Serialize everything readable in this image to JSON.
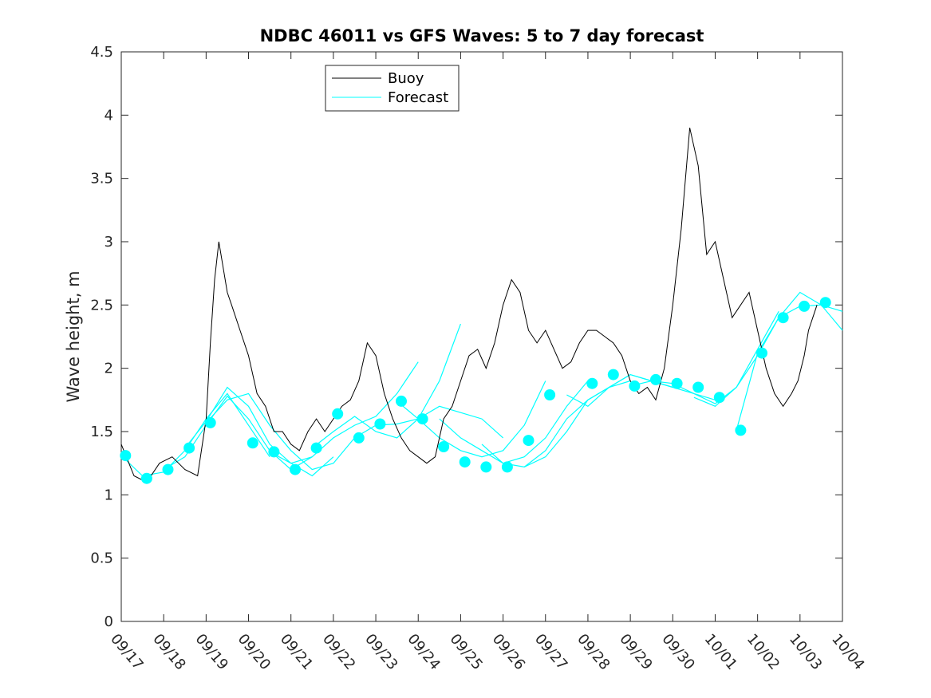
{
  "chart_data": {
    "type": "line",
    "title": "NDBC 46011 vs GFS Waves: 5 to 7 day forecast",
    "xlabel": "",
    "ylabel": "Wave height, m",
    "xlim": [
      0,
      17
    ],
    "ylim": [
      0,
      4.5
    ],
    "y_ticks": [
      0,
      0.5,
      1,
      1.5,
      2,
      2.5,
      3,
      3.5,
      4,
      4.5
    ],
    "y_tick_labels": [
      "0",
      "0.5",
      "1",
      "1.5",
      "2",
      "2.5",
      "3",
      "3.5",
      "4",
      "4.5"
    ],
    "x_tick_labels": [
      "09/17",
      "09/18",
      "09/19",
      "09/20",
      "09/21",
      "09/22",
      "09/23",
      "09/24",
      "09/25",
      "09/26",
      "09/27",
      "09/28",
      "09/29",
      "09/30",
      "10/01",
      "10/02",
      "10/03",
      "10/04"
    ],
    "x_unit": "days since 09/17",
    "legend": {
      "position": "top-center",
      "entries": [
        "Buoy",
        "Forecast"
      ]
    },
    "colors": {
      "buoy": "#000000",
      "forecast": "#00FFFF",
      "marker": "#00FFFF"
    },
    "series": [
      {
        "name": "Buoy",
        "x": [
          0,
          0.3,
          0.6,
          0.9,
          1.2,
          1.5,
          1.8,
          2.0,
          2.1,
          2.2,
          2.3,
          2.4,
          2.5,
          2.6,
          2.8,
          3.0,
          3.2,
          3.4,
          3.6,
          3.8,
          4.0,
          4.2,
          4.4,
          4.6,
          4.8,
          5.0,
          5.2,
          5.4,
          5.6,
          5.8,
          6.0,
          6.2,
          6.4,
          6.6,
          6.8,
          7.0,
          7.2,
          7.4,
          7.6,
          7.8,
          8.0,
          8.2,
          8.4,
          8.6,
          8.8,
          9.0,
          9.2,
          9.4,
          9.6,
          9.8,
          10.0,
          10.2,
          10.4,
          10.6,
          10.8,
          11.0,
          11.2,
          11.4,
          11.6,
          11.8,
          12.0,
          12.2,
          12.4,
          12.6,
          12.8,
          13.0,
          13.2,
          13.4,
          13.6,
          13.8,
          14.0,
          14.2,
          14.4,
          14.6,
          14.8,
          15.0,
          15.2,
          15.4,
          15.6,
          15.8,
          15.95,
          16.1,
          16.2,
          16.3,
          16.4
        ],
        "values": [
          1.4,
          1.15,
          1.1,
          1.25,
          1.3,
          1.2,
          1.15,
          1.6,
          2.2,
          2.7,
          3.0,
          2.8,
          2.6,
          2.5,
          2.3,
          2.1,
          1.8,
          1.7,
          1.5,
          1.5,
          1.4,
          1.35,
          1.5,
          1.6,
          1.5,
          1.6,
          1.7,
          1.75,
          1.9,
          2.2,
          2.1,
          1.8,
          1.6,
          1.45,
          1.35,
          1.3,
          1.25,
          1.3,
          1.6,
          1.7,
          1.9,
          2.1,
          2.15,
          2.0,
          2.2,
          2.5,
          2.7,
          2.6,
          2.3,
          2.2,
          2.3,
          2.15,
          2.0,
          2.05,
          2.2,
          2.3,
          2.3,
          2.25,
          2.2,
          2.1,
          1.9,
          1.8,
          1.85,
          1.75,
          2.0,
          2.5,
          3.1,
          3.9,
          3.6,
          2.9,
          3.0,
          2.7,
          2.4,
          2.5,
          2.6,
          2.3,
          2.0,
          1.8,
          1.7,
          1.8,
          1.9,
          2.1,
          2.3,
          2.4,
          2.5
        ]
      },
      {
        "name": "Forecast",
        "segments": [
          {
            "x": [
              0.0,
              0.5,
              1.0,
              1.5,
              2.0,
              2.5,
              3.0,
              3.5
            ],
            "values": [
              1.31,
              1.15,
              1.18,
              1.35,
              1.6,
              1.8,
              1.55,
              1.3
            ]
          },
          {
            "x": [
              1.0,
              1.5,
              2.0,
              2.5,
              3.0,
              3.5,
              4.0,
              4.5
            ],
            "values": [
              1.2,
              1.3,
              1.55,
              1.78,
              1.6,
              1.35,
              1.2,
              1.3
            ]
          },
          {
            "x": [
              1.5,
              2.0,
              2.5,
              3.0,
              3.5,
              4.0,
              4.5,
              5.0
            ],
            "values": [
              1.37,
              1.58,
              1.85,
              1.7,
              1.4,
              1.25,
              1.15,
              1.3
            ]
          },
          {
            "x": [
              2.0,
              2.5,
              3.0,
              3.5,
              4.0,
              4.5,
              5.0,
              5.5
            ],
            "values": [
              1.57,
              1.75,
              1.8,
              1.55,
              1.35,
              1.2,
              1.25,
              1.45
            ]
          },
          {
            "x": [
              3.5,
              4.0,
              4.5,
              5.0,
              5.5,
              6.0,
              6.5,
              7.0
            ],
            "values": [
              1.34,
              1.25,
              1.3,
              1.45,
              1.55,
              1.62,
              1.8,
              2.05
            ]
          },
          {
            "x": [
              4.5,
              5.0,
              5.5,
              6.0,
              6.5,
              7.0,
              7.5,
              8.0
            ],
            "values": [
              1.37,
              1.5,
              1.62,
              1.5,
              1.45,
              1.6,
              1.9,
              2.35
            ]
          },
          {
            "x": [
              5.5,
              6.0,
              6.5,
              7.0,
              7.5,
              8.0,
              8.5,
              9.0
            ],
            "values": [
              1.45,
              1.55,
              1.56,
              1.6,
              1.7,
              1.65,
              1.6,
              1.45
            ]
          },
          {
            "x": [
              6.5,
              7.0,
              7.5,
              8.0,
              8.5,
              9.0,
              9.5,
              10.0
            ],
            "values": [
              1.74,
              1.6,
              1.45,
              1.35,
              1.3,
              1.35,
              1.55,
              1.9
            ]
          },
          {
            "x": [
              7.5,
              8.0,
              8.5,
              9.0,
              9.5,
              10.0,
              10.5,
              11.0
            ],
            "values": [
              1.6,
              1.45,
              1.35,
              1.25,
              1.3,
              1.45,
              1.7,
              1.9
            ]
          },
          {
            "x": [
              8.5,
              9.0,
              9.5,
              10.0,
              10.5,
              11.0,
              11.5,
              12.0
            ],
            "values": [
              1.4,
              1.25,
              1.22,
              1.3,
              1.5,
              1.75,
              1.85,
              1.9
            ]
          },
          {
            "x": [
              9.5,
              10.0,
              10.5,
              11.0,
              11.5,
              12.0,
              12.5,
              13.0
            ],
            "values": [
              1.22,
              1.35,
              1.6,
              1.75,
              1.85,
              1.95,
              1.9,
              1.85
            ]
          },
          {
            "x": [
              10.5,
              11.0,
              11.5,
              12.0,
              12.5,
              13.0,
              13.5,
              14.0
            ],
            "values": [
              1.79,
              1.7,
              1.85,
              1.95,
              1.9,
              1.85,
              1.8,
              1.75
            ]
          },
          {
            "x": [
              12.0,
              12.5,
              13.0,
              13.5,
              14.0,
              14.5,
              15.0,
              15.5
            ],
            "values": [
              1.86,
              1.9,
              1.88,
              1.8,
              1.72,
              1.85,
              2.15,
              2.45
            ]
          },
          {
            "x": [
              13.5,
              14.0,
              14.5,
              15.0,
              15.5,
              16.0,
              16.5,
              17.0
            ],
            "values": [
              1.77,
              1.7,
              1.85,
              2.1,
              2.4,
              2.6,
              2.5,
              2.3
            ]
          },
          {
            "x": [
              14.5,
              15.0,
              15.5,
              16.0,
              16.5,
              17.0
            ],
            "values": [
              1.51,
              2.12,
              2.4,
              2.49,
              2.5,
              2.45
            ]
          }
        ]
      },
      {
        "name": "Forecast markers",
        "x": [
          0.1,
          0.6,
          1.1,
          1.6,
          2.1,
          3.1,
          3.6,
          4.1,
          4.6,
          5.1,
          5.6,
          6.1,
          6.6,
          7.1,
          7.6,
          8.1,
          8.6,
          9.1,
          9.6,
          10.1,
          11.1,
          11.6,
          12.1,
          12.6,
          13.1,
          13.6,
          14.1,
          14.6,
          15.1,
          15.6,
          16.1,
          16.6
        ],
        "values": [
          1.31,
          1.13,
          1.2,
          1.37,
          1.57,
          1.41,
          1.34,
          1.2,
          1.37,
          1.64,
          1.45,
          1.56,
          1.74,
          1.6,
          1.38,
          1.26,
          1.22,
          1.22,
          1.43,
          1.79,
          1.88,
          1.95,
          1.86,
          1.91,
          1.88,
          1.85,
          1.77,
          1.51,
          2.12,
          2.4,
          2.49,
          2.52
        ]
      }
    ]
  }
}
